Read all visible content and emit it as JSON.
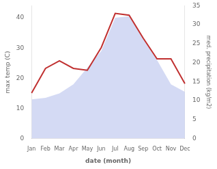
{
  "chart_data": {
    "type": "line",
    "categories": [
      "Jan",
      "Feb",
      "Mar",
      "Apr",
      "May",
      "Jun",
      "Jul",
      "Aug",
      "Sep",
      "Oct",
      "Nov",
      "Dec"
    ],
    "series": [
      {
        "type": "area",
        "color": "#c5cef0",
        "values": [
          13.0,
          13.5,
          15.0,
          18.0,
          23.5,
          29.0,
          40.0,
          40.5,
          33.0,
          26.0,
          18.0,
          15.5
        ]
      },
      {
        "type": "line",
        "color": "#c03030",
        "axis": "y2",
        "values": [
          12.0,
          18.5,
          20.5,
          18.5,
          18.0,
          24.0,
          33.0,
          32.5,
          26.5,
          21.0,
          21.0,
          14.5
        ]
      }
    ],
    "xlabel": "date (month)",
    "ylabel": "max temp (C)",
    "y2label": "med. precipitation (kg/m2)",
    "ylim": [
      0,
      44
    ],
    "yticks": [
      0,
      10,
      20,
      30,
      40
    ],
    "y2lim": [
      0,
      35
    ],
    "y2ticks": [
      0,
      5,
      10,
      15,
      20,
      25,
      30,
      35
    ],
    "grid": false
  }
}
